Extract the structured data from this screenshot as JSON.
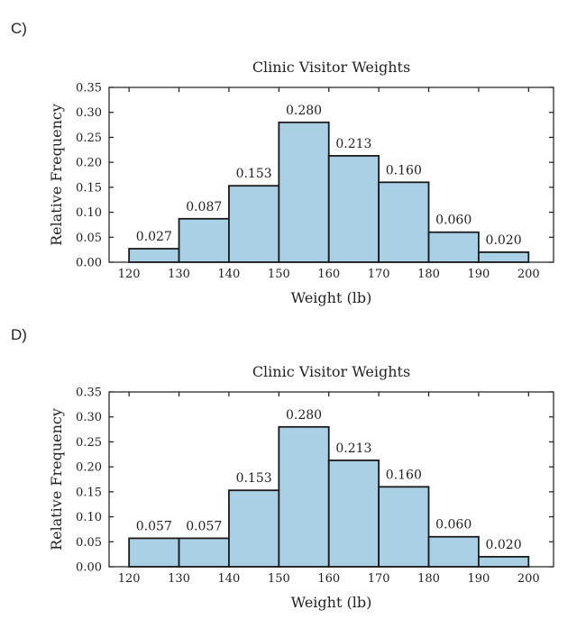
{
  "panels": [
    {
      "label": "C)"
    },
    {
      "label": "D)"
    }
  ],
  "chart_data": [
    {
      "type": "bar",
      "title": "Clinic Visitor Weights",
      "xlabel": "Weight (lb)",
      "ylabel": "Relative Frequency",
      "bin_edges": [
        120,
        130,
        140,
        150,
        160,
        170,
        180,
        190,
        200
      ],
      "values": [
        0.027,
        0.087,
        0.153,
        0.28,
        0.213,
        0.16,
        0.06,
        0.02
      ],
      "value_labels": [
        "0.027",
        "0.087",
        "0.153",
        "0.280",
        "0.213",
        "0.160",
        "0.060",
        "0.020"
      ],
      "xticks": [
        "120",
        "130",
        "140",
        "150",
        "160",
        "170",
        "180",
        "190",
        "200"
      ],
      "yticks": [
        "0.00",
        "0.05",
        "0.10",
        "0.15",
        "0.20",
        "0.25",
        "0.30",
        "0.35"
      ],
      "xlim": [
        116,
        205
      ],
      "ylim": [
        0,
        0.35
      ],
      "bar_color": "#a9d0e4",
      "edge_color": "#1a1a1a",
      "grid": false
    },
    {
      "type": "bar",
      "title": "Clinic Visitor Weights",
      "xlabel": "Weight (lb)",
      "ylabel": "Relative Frequency",
      "bin_edges": [
        120,
        130,
        140,
        150,
        160,
        170,
        180,
        190,
        200
      ],
      "values": [
        0.057,
        0.057,
        0.153,
        0.28,
        0.213,
        0.16,
        0.06,
        0.02
      ],
      "value_labels": [
        "0.057",
        "0.057",
        "0.153",
        "0.280",
        "0.213",
        "0.160",
        "0.060",
        "0.020"
      ],
      "xticks": [
        "120",
        "130",
        "140",
        "150",
        "160",
        "170",
        "180",
        "190",
        "200"
      ],
      "yticks": [
        "0.00",
        "0.05",
        "0.10",
        "0.15",
        "0.20",
        "0.25",
        "0.30",
        "0.35"
      ],
      "xlim": [
        116,
        205
      ],
      "ylim": [
        0,
        0.35
      ],
      "bar_color": "#a9d0e4",
      "edge_color": "#1a1a1a",
      "grid": false
    }
  ]
}
